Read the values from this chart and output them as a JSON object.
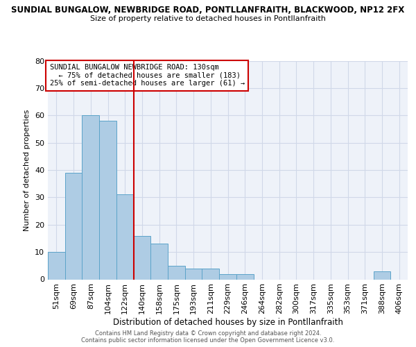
{
  "title_main": "SUNDIAL BUNGALOW, NEWBRIDGE ROAD, PONTLLANFRAITH, BLACKWOOD, NP12 2FX",
  "title_sub": "Size of property relative to detached houses in Pontllanfraith",
  "xlabel": "Distribution of detached houses by size in Pontllanfraith",
  "ylabel": "Number of detached properties",
  "bar_labels": [
    "51sqm",
    "69sqm",
    "87sqm",
    "104sqm",
    "122sqm",
    "140sqm",
    "158sqm",
    "175sqm",
    "193sqm",
    "211sqm",
    "229sqm",
    "246sqm",
    "264sqm",
    "282sqm",
    "300sqm",
    "317sqm",
    "335sqm",
    "353sqm",
    "371sqm",
    "388sqm",
    "406sqm"
  ],
  "bar_values": [
    10,
    39,
    60,
    58,
    31,
    16,
    13,
    5,
    4,
    4,
    2,
    2,
    0,
    0,
    0,
    0,
    0,
    0,
    0,
    3,
    0
  ],
  "bar_color": "#aecce4",
  "bar_edge_color": "#5ba3c9",
  "vline_x": 4.5,
  "vline_color": "#cc0000",
  "ylim": [
    0,
    80
  ],
  "yticks": [
    0,
    10,
    20,
    30,
    40,
    50,
    60,
    70,
    80
  ],
  "grid_color": "#d0d8e8",
  "bg_color": "#eef2f9",
  "annotation_title": "SUNDIAL BUNGALOW NEWBRIDGE ROAD: 130sqm",
  "annotation_line1": "  ← 75% of detached houses are smaller (183)",
  "annotation_line2": "25% of semi-detached houses are larger (61) →",
  "annotation_box_color": "#cc0000",
  "footer1": "Contains HM Land Registry data © Crown copyright and database right 2024.",
  "footer2": "Contains public sector information licensed under the Open Government Licence v3.0."
}
